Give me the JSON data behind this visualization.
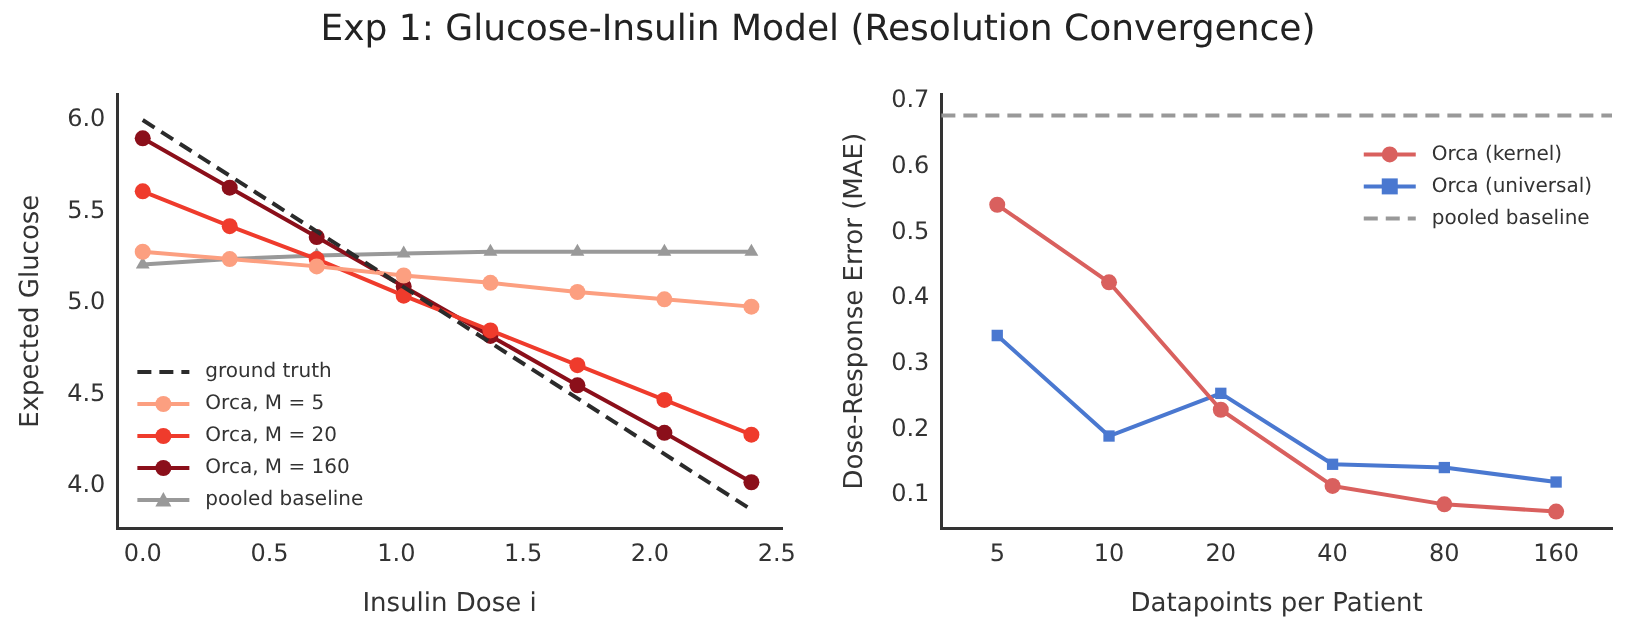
{
  "chart_data": [
    {
      "type": "line",
      "title": "Exp 1: Glucose-Insulin Model (Resolution Convergence)",
      "xlabel": "Insulin Dose i",
      "ylabel": "Expected Glucose",
      "x": [
        0,
        0.343,
        0.686,
        1.029,
        1.371,
        1.714,
        2.057,
        2.4
      ],
      "series": [
        {
          "name": "ground truth",
          "color": "#2b2b2b",
          "x": [
            0,
            2.4
          ],
          "values": [
            6.0,
            3.87
          ],
          "marker": "none",
          "line_style": "dashed"
        },
        {
          "name": "Orca, M = 5",
          "color": "#fc9f80",
          "values": [
            5.28,
            5.24,
            5.2,
            5.15,
            5.11,
            5.06,
            5.02,
            4.98
          ],
          "marker": "circle"
        },
        {
          "name": "Orca, M = 20",
          "color": "#ef3b2c",
          "values": [
            5.61,
            5.42,
            5.24,
            5.04,
            4.85,
            4.66,
            4.47,
            4.28
          ],
          "marker": "circle"
        },
        {
          "name": "Orca, M = 160",
          "color": "#8b0f1a",
          "values": [
            5.9,
            5.63,
            5.36,
            5.09,
            4.82,
            4.55,
            4.29,
            4.02
          ],
          "marker": "circle"
        },
        {
          "name": "pooled baseline",
          "color": "#999999",
          "values": [
            5.21,
            5.24,
            5.26,
            5.27,
            5.28,
            5.28,
            5.28,
            5.28
          ],
          "marker": "triangle"
        }
      ],
      "xlim": [
        -0.1,
        2.52
      ],
      "ylim": [
        3.77,
        6.14
      ],
      "xticks": [
        {
          "value": 0,
          "label": "0.0"
        },
        0.5,
        {
          "value": 1,
          "label": "1.0"
        },
        1.5,
        {
          "value": 2,
          "label": "2.0"
        },
        2.5
      ],
      "yticks": [
        {
          "value": 4,
          "label": "4.0"
        },
        4.5,
        {
          "value": 5,
          "label": "5.0"
        },
        5.5,
        {
          "value": 6,
          "label": "6.0"
        }
      ],
      "grid": false,
      "legend": "bottom left",
      "line_style": "solid"
    },
    {
      "type": "line",
      "xlabel": "Datapoints per Patient",
      "ylabel": "Dose-Response Error (MAE)",
      "categories": [
        "5",
        "10",
        "20",
        "40",
        "80",
        "160"
      ],
      "series": [
        {
          "name": "Orca (kernel)",
          "color": "#d9605e",
          "values": [
            0.542,
            0.424,
            0.23,
            0.114,
            0.086,
            0.075
          ],
          "marker": "circle"
        },
        {
          "name": "Orca (universal)",
          "color": "#4a78d0",
          "values": [
            0.343,
            0.19,
            0.255,
            0.147,
            0.142,
            0.12
          ],
          "marker": "square"
        }
      ],
      "ref_lines": [
        {
          "axis": "y",
          "value": 0.678,
          "label": "pooled baseline",
          "color": "#999999",
          "line_style": "dashed"
        }
      ],
      "ylim": [
        0.05,
        0.71
      ],
      "yticks": [
        0.1,
        0.2,
        0.3,
        0.4,
        0.5,
        0.6,
        0.7
      ],
      "grid": false,
      "legend": "top right",
      "line_style": "solid"
    }
  ]
}
